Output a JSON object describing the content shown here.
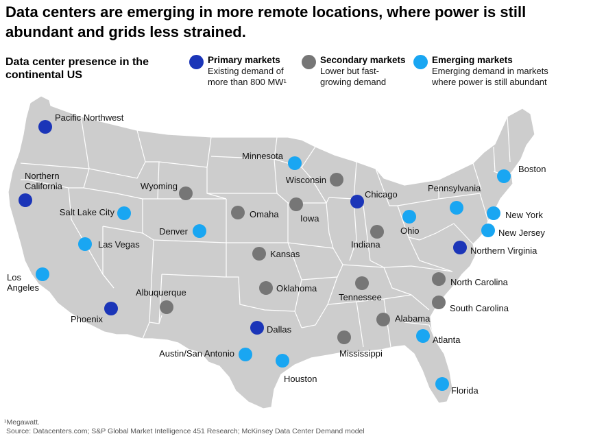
{
  "title": "Data centers are emerging in more remote locations, where power is still abundant and grids less strained.",
  "subtitle": "Data center presence in the continental US",
  "legend": [
    {
      "key": "primary",
      "title": "Primary markets",
      "desc": "Existing demand of\nmore than 800 MW¹",
      "color": "#1b35b8"
    },
    {
      "key": "secondary",
      "title": "Secondary markets",
      "desc": "Lower but fast-\ngrowing demand",
      "color": "#767676"
    },
    {
      "key": "emerging",
      "title": "Emerging markets",
      "desc": "Emerging demand in markets\nwhere power is still abundant",
      "color": "#19a6f2"
    }
  ],
  "markets": [
    {
      "name": "Pacific Northwest",
      "type": "primary"
    },
    {
      "name": "Northern\nCalifornia",
      "type": "primary"
    },
    {
      "name": "Phoenix",
      "type": "primary"
    },
    {
      "name": "Dallas",
      "type": "primary"
    },
    {
      "name": "Chicago",
      "type": "primary"
    },
    {
      "name": "Northern Virginia",
      "type": "primary"
    },
    {
      "name": "Wyoming",
      "type": "secondary"
    },
    {
      "name": "Omaha",
      "type": "secondary"
    },
    {
      "name": "Iowa",
      "type": "secondary"
    },
    {
      "name": "Wisconsin",
      "type": "secondary"
    },
    {
      "name": "Kansas",
      "type": "secondary"
    },
    {
      "name": "Oklahoma",
      "type": "secondary"
    },
    {
      "name": "Albuquerque",
      "type": "secondary"
    },
    {
      "name": "Indiana",
      "type": "secondary"
    },
    {
      "name": "Tennessee",
      "type": "secondary"
    },
    {
      "name": "Alabama",
      "type": "secondary"
    },
    {
      "name": "Mississippi",
      "type": "secondary"
    },
    {
      "name": "North Carolina",
      "type": "secondary"
    },
    {
      "name": "South Carolina",
      "type": "secondary"
    },
    {
      "name": "Minnesota",
      "type": "emerging"
    },
    {
      "name": "Salt Lake City",
      "type": "emerging"
    },
    {
      "name": "Denver",
      "type": "emerging"
    },
    {
      "name": "Las Vegas",
      "type": "emerging"
    },
    {
      "name": "Los\nAngeles",
      "type": "emerging"
    },
    {
      "name": "Austin/San Antonio",
      "type": "emerging"
    },
    {
      "name": "Houston",
      "type": "emerging"
    },
    {
      "name": "Ohio",
      "type": "emerging"
    },
    {
      "name": "Pennsylvania",
      "type": "emerging"
    },
    {
      "name": "New York",
      "type": "emerging"
    },
    {
      "name": "New Jersey",
      "type": "emerging"
    },
    {
      "name": "Boston",
      "type": "emerging"
    },
    {
      "name": "Atlanta",
      "type": "emerging"
    },
    {
      "name": "Florida",
      "type": "emerging"
    }
  ],
  "footnote": "¹Megawatt.",
  "source": "Source: Datacenters.com; S&P Global Market Intelligence 451 Research; McKinsey Data Center Demand model"
}
